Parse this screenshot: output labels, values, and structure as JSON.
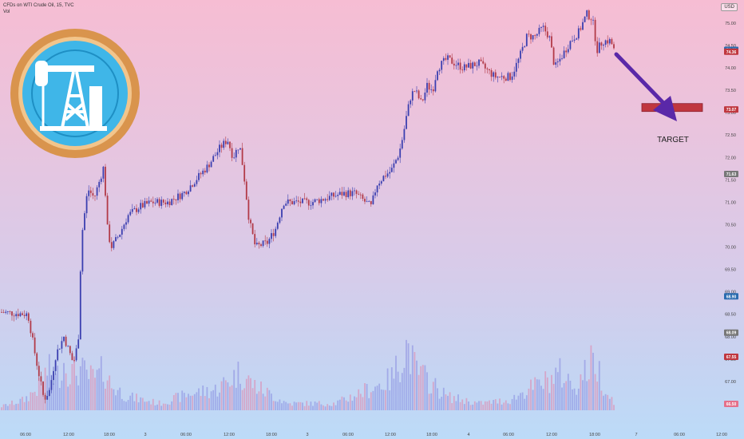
{
  "header": {
    "symbol_line": "CFDs on WTI Crude Oil, 15, TVC",
    "vol_label": "Vol"
  },
  "currency_badge": "USD",
  "target_label": "TARGET",
  "colors": {
    "up_candle": "#3b3fb0",
    "down_candle": "#b23a48",
    "target_box": "#c0373f",
    "arrow": "#5a28a8",
    "logo_ring": "#d9944d",
    "logo_fill": "#3fb6e8"
  },
  "chart_data": {
    "type": "candlestick",
    "title": "CFDs on WTI Crude Oil, 15, TVC",
    "ylim": [
      66.5,
      75.3
    ],
    "y_ticks": [
      "75.00",
      "74.50",
      "74.00",
      "73.50",
      "73.00",
      "72.50",
      "72.00",
      "71.50",
      "71.00",
      "70.50",
      "70.00",
      "69.50",
      "69.00",
      "68.50",
      "68.00",
      "67.50",
      "67.00",
      "66.50"
    ],
    "x_ticks": [
      "06:00",
      "12:00",
      "18:00",
      "3",
      "06:00",
      "12:00",
      "18:00",
      "3",
      "06:00",
      "12:00",
      "18:00",
      "4",
      "06:00",
      "12:00",
      "18:00",
      "7",
      "06:00",
      "12:00"
    ],
    "price_badges": [
      {
        "value": "74.40",
        "color": "#2b6cb0"
      },
      {
        "value": "74.36",
        "color": "#c0373f"
      },
      {
        "value": "71.63",
        "color": "#777777"
      },
      {
        "value": "73.07",
        "color": "#c0373f"
      },
      {
        "value": "68.90",
        "color": "#2b6cb0"
      },
      {
        "value": "68.09",
        "color": "#777777"
      },
      {
        "value": "67.55",
        "color": "#c0373f"
      },
      {
        "value": "66.50",
        "color": "#e4708a"
      }
    ],
    "target_zone": [
      73.0,
      73.15
    ],
    "price_path": [
      [
        0,
        68.55
      ],
      [
        35,
        68.5
      ],
      [
        45,
        67.5
      ],
      [
        55,
        66.6
      ],
      [
        62,
        66.8
      ],
      [
        70,
        67.6
      ],
      [
        80,
        68.0
      ],
      [
        92,
        67.4
      ],
      [
        98,
        67.9
      ],
      [
        102,
        70.2
      ],
      [
        110,
        71.3
      ],
      [
        118,
        71.1
      ],
      [
        125,
        71.5
      ],
      [
        130,
        71.8
      ],
      [
        135,
        70.3
      ],
      [
        140,
        70.0
      ],
      [
        150,
        70.3
      ],
      [
        160,
        70.7
      ],
      [
        175,
        70.9
      ],
      [
        190,
        71.0
      ],
      [
        210,
        71.0
      ],
      [
        230,
        71.2
      ],
      [
        245,
        71.5
      ],
      [
        260,
        71.8
      ],
      [
        275,
        72.2
      ],
      [
        285,
        72.4
      ],
      [
        292,
        72.0
      ],
      [
        300,
        72.3
      ],
      [
        305,
        71.7
      ],
      [
        312,
        70.6
      ],
      [
        320,
        70.0
      ],
      [
        335,
        70.1
      ],
      [
        345,
        70.4
      ],
      [
        355,
        71.0
      ],
      [
        370,
        71.0
      ],
      [
        390,
        71.0
      ],
      [
        410,
        71.1
      ],
      [
        430,
        71.2
      ],
      [
        445,
        71.2
      ],
      [
        458,
        71.0
      ],
      [
        465,
        70.9
      ],
      [
        472,
        71.4
      ],
      [
        482,
        71.6
      ],
      [
        490,
        71.7
      ],
      [
        500,
        72.1
      ],
      [
        505,
        72.5
      ],
      [
        510,
        73.0
      ],
      [
        515,
        73.4
      ],
      [
        520,
        73.5
      ],
      [
        528,
        73.2
      ],
      [
        535,
        73.6
      ],
      [
        542,
        73.5
      ],
      [
        548,
        74.0
      ],
      [
        560,
        74.2
      ],
      [
        580,
        74.0
      ],
      [
        600,
        74.1
      ],
      [
        620,
        73.8
      ],
      [
        640,
        73.8
      ],
      [
        650,
        74.2
      ],
      [
        660,
        74.7
      ],
      [
        670,
        74.7
      ],
      [
        680,
        74.9
      ],
      [
        688,
        74.7
      ],
      [
        695,
        74.0
      ],
      [
        705,
        74.3
      ],
      [
        715,
        74.6
      ],
      [
        725,
        74.8
      ],
      [
        735,
        75.2
      ],
      [
        742,
        75.1
      ],
      [
        748,
        74.4
      ],
      [
        755,
        74.6
      ],
      [
        765,
        74.6
      ],
      [
        770,
        74.35
      ]
    ],
    "volume_profile": [
      [
        0,
        0.05
      ],
      [
        30,
        0.15
      ],
      [
        50,
        0.35
      ],
      [
        60,
        0.6
      ],
      [
        70,
        0.45
      ],
      [
        80,
        0.7
      ],
      [
        90,
        0.55
      ],
      [
        100,
        0.6
      ],
      [
        110,
        0.5
      ],
      [
        120,
        0.45
      ],
      [
        130,
        0.6
      ],
      [
        140,
        0.35
      ],
      [
        160,
        0.2
      ],
      [
        200,
        0.1
      ],
      [
        240,
        0.25
      ],
      [
        270,
        0.3
      ],
      [
        300,
        0.55
      ],
      [
        320,
        0.35
      ],
      [
        360,
        0.1
      ],
      [
        420,
        0.1
      ],
      [
        460,
        0.3
      ],
      [
        490,
        0.45
      ],
      [
        510,
        0.95
      ],
      [
        520,
        0.6
      ],
      [
        540,
        0.4
      ],
      [
        560,
        0.2
      ],
      [
        600,
        0.1
      ],
      [
        640,
        0.15
      ],
      [
        660,
        0.3
      ],
      [
        690,
        0.45
      ],
      [
        700,
        0.55
      ],
      [
        720,
        0.35
      ],
      [
        745,
        0.75
      ],
      [
        760,
        0.25
      ],
      [
        772,
        0.1
      ]
    ]
  }
}
